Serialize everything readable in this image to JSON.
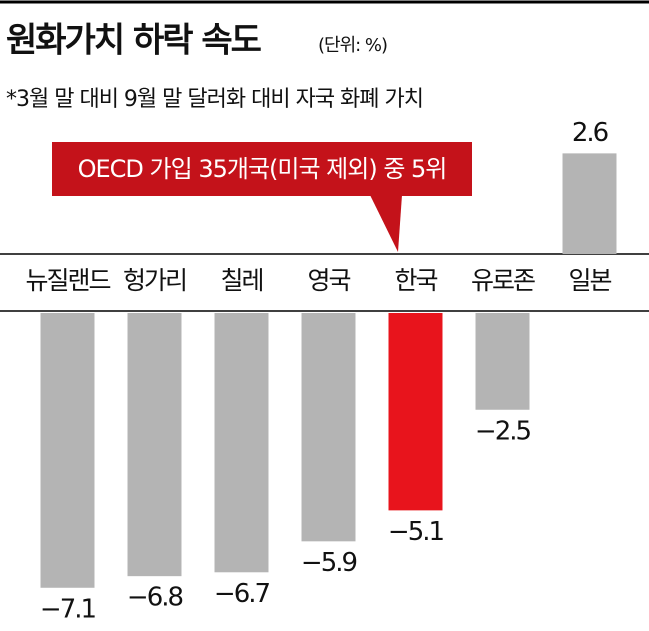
{
  "chart_data": {
    "type": "bar",
    "title": "원화가치 하락 속도",
    "unit": "(단위: %)",
    "subtitle": "*3월 말 대비 9월 말 달러화 대비 자국 화폐 가치",
    "annotation": "OECD 가입 35개국(미국 제외) 중 5위",
    "categories": [
      "뉴질랜드",
      "헝가리",
      "칠레",
      "영국",
      "한국",
      "유로존",
      "일본"
    ],
    "values": [
      -7.1,
      -6.8,
      -6.7,
      -5.9,
      -5.1,
      -2.5,
      2.6
    ],
    "value_labels": [
      "−7.1",
      "−6.8",
      "−6.7",
      "−5.9",
      "−5.1",
      "−2.5",
      "2.6"
    ],
    "colors": [
      "#b4b4b4",
      "#b4b4b4",
      "#b4b4b4",
      "#b4b4b4",
      "#e8141c",
      "#b4b4b4",
      "#b4b4b4"
    ],
    "annotation_color": "#c4121a"
  }
}
